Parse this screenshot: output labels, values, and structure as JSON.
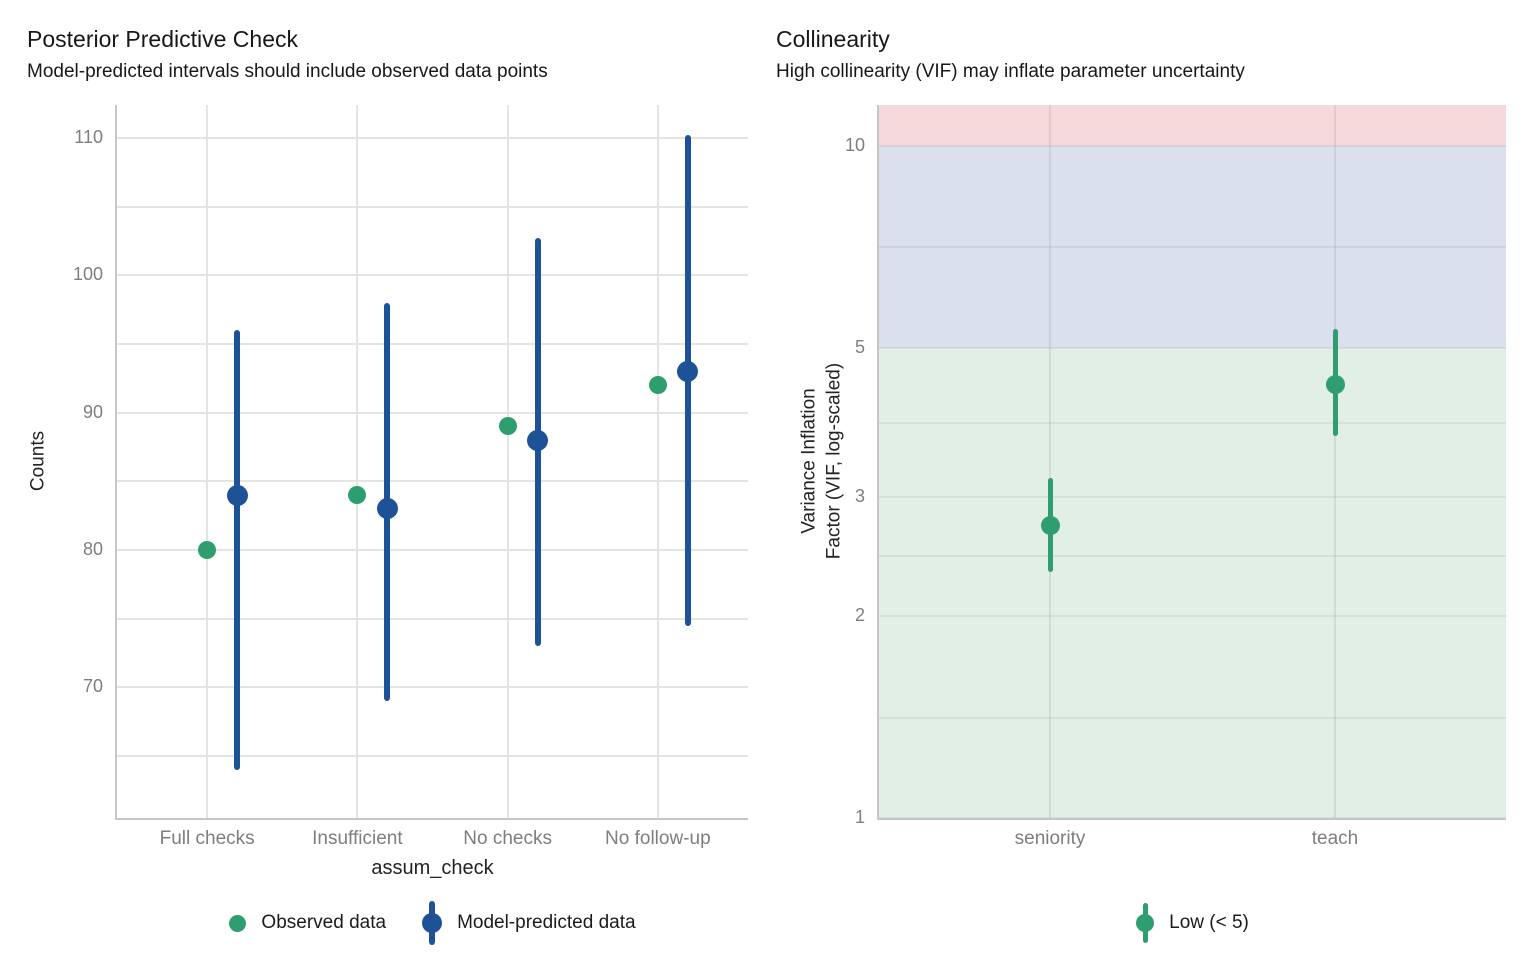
{
  "figures": {
    "left": {
      "title": "Posterior Predictive Check",
      "subtitle": "Model-predicted intervals should include observed data points",
      "x_axis_title": "assum_check",
      "y_axis_title": "Counts",
      "legend": [
        {
          "label": "Observed data",
          "glyph": "dot",
          "color": "#2F9E6E"
        },
        {
          "label": "Model-predicted data",
          "glyph": "pointrange",
          "color": "#1E5296"
        }
      ]
    },
    "right": {
      "title": "Collinearity",
      "subtitle": "High collinearity (VIF) may inflate parameter uncertainty",
      "x_axis_title": "",
      "y_axis_title_line1": "Variance Inflation",
      "y_axis_title_line2": "Factor (VIF, log-scaled)",
      "legend": [
        {
          "label": "Low (< 5)",
          "glyph": "pointrange",
          "color": "#2F9E6E"
        }
      ]
    }
  },
  "colors": {
    "observed_green": "#2F9E6E",
    "predicted_blue": "#1E5296",
    "band_low_green": "#E2EFE5",
    "band_moderate_lavender": "#DBE0EE",
    "band_high_pink": "#F5D9DB",
    "gridline_gray": "#E4E4E4",
    "axis_line_gray": "#C6C6C6",
    "tick_text_gray": "#7E7E7E"
  },
  "chart_data": [
    {
      "type": "scatter",
      "subtype": "pointrange",
      "title": "Posterior Predictive Check",
      "subtitle": "Model-predicted intervals should include observed data points",
      "xlabel": "assum_check",
      "ylabel": "Counts",
      "categories": [
        "Full checks",
        "Insufficient",
        "No checks",
        "No follow-up"
      ],
      "series": [
        {
          "name": "Observed data",
          "color": "#2F9E6E",
          "values": [
            80,
            84,
            89,
            92
          ]
        },
        {
          "name": "Model-predicted data",
          "color": "#1E5296",
          "values": [
            84,
            83,
            88,
            93
          ],
          "interval_low": [
            64,
            69,
            73,
            74.5
          ],
          "interval_high": [
            96,
            98,
            102.7,
            110.2
          ]
        }
      ],
      "yscale": "linear",
      "ylim": [
        60.5,
        112.4
      ],
      "yticks": [
        70,
        80,
        90,
        100,
        110
      ],
      "ytick_labels": [
        "70",
        "80",
        "90",
        "100",
        "110"
      ],
      "yticks_minor": [
        65,
        75,
        85,
        95,
        105
      ],
      "grid": true,
      "legend_position": "bottom"
    },
    {
      "type": "scatter",
      "subtype": "pointrange",
      "title": "Collinearity",
      "subtitle": "High collinearity (VIF) may inflate parameter uncertainty",
      "xlabel": "",
      "ylabel": "Variance Inflation Factor (VIF, log-scaled)",
      "categories": [
        "seniority",
        "teach"
      ],
      "series": [
        {
          "name": "Low (< 5)",
          "color": "#2F9E6E",
          "values": [
            2.72,
            4.42
          ],
          "interval_low": [
            2.32,
            3.7
          ],
          "interval_high": [
            3.21,
            5.33
          ]
        }
      ],
      "yscale": "log",
      "ylim": [
        1,
        11.5
      ],
      "yticks": [
        1,
        2,
        3,
        5,
        10
      ],
      "ytick_labels": [
        "1",
        "2",
        "3",
        "5",
        "10"
      ],
      "yticks_minor": [
        1.41,
        2.45,
        3.87,
        7.07
      ],
      "bands": [
        {
          "from": 1,
          "to": 5,
          "meaning": "low VIF",
          "color": "#E2EFE5"
        },
        {
          "from": 5,
          "to": 10,
          "meaning": "moderate VIF",
          "color": "#DBE0EE"
        },
        {
          "from": 10,
          "to": 11.5,
          "meaning": "high VIF",
          "color": "#F5D9DB"
        }
      ],
      "grid": true,
      "legend_position": "bottom"
    }
  ]
}
